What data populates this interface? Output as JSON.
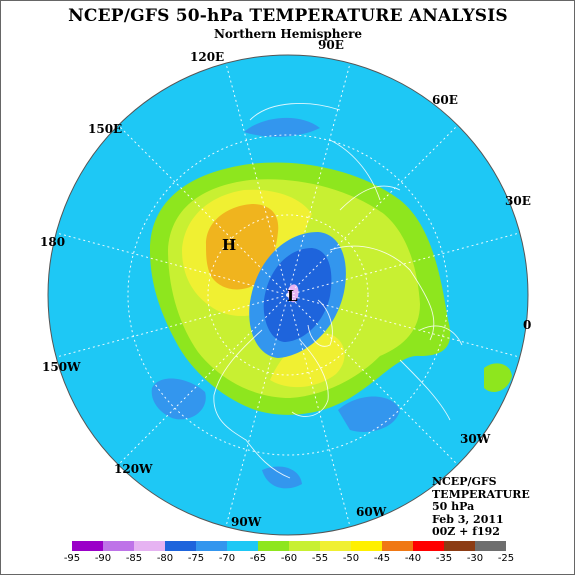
{
  "title": "NCEP/GFS 50-hPa TEMPERATURE ANALYSIS",
  "subtitle": "Northern Hemisphere",
  "longitude_labels": [
    "90E",
    "60E",
    "30E",
    "0",
    "30W",
    "60W",
    "90W",
    "120W",
    "150W",
    "180",
    "150E",
    "120E"
  ],
  "pressure_centers": {
    "high": "H",
    "low": "L"
  },
  "info": {
    "line1": "NCEP/GFS",
    "line2": "TEMPERATURE",
    "line3": "50 hPa",
    "line4": "Feb 3, 2011",
    "line5": "00Z + f192"
  },
  "legend": {
    "labels": [
      "-95",
      "-90",
      "-85",
      "-80",
      "-75",
      "-70",
      "-65",
      "-60",
      "-55",
      "-50",
      "-45",
      "-40",
      "-35",
      "-30",
      "-25"
    ],
    "colors": [
      "#9a00c8",
      "#be73e8",
      "#e6b3f2",
      "#1e64dc",
      "#3396ee",
      "#1ec8f5",
      "#8ee61e",
      "#c8f032",
      "#f0f032",
      "#fff000",
      "#f07814",
      "#ff0000",
      "#8c3c14",
      "#6e6e6e"
    ]
  },
  "field_colors": {
    "ocean_background": "#1ec8f5",
    "band_m65": "#8ee61e",
    "band_m60": "#c8f032",
    "band_m55": "#f0f032",
    "band_m50": "#f0b41e",
    "band_m70": "#3396ee",
    "band_m75": "#1e64dc",
    "band_m80": "#e6b3f2"
  }
}
